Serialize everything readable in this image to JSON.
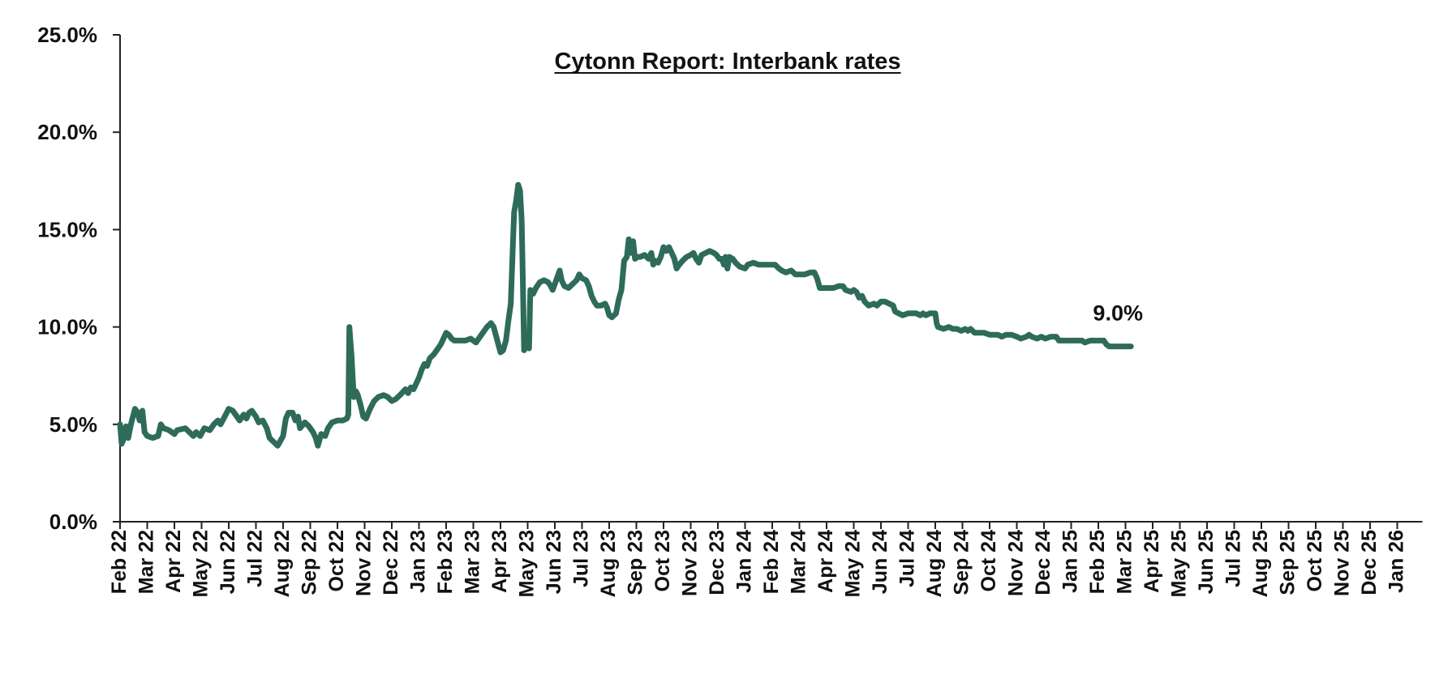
{
  "chart_data": {
    "type": "line",
    "title": "Cytonn Report: Interbank rates",
    "xlabel": "",
    "ylabel": "",
    "ylim": [
      0,
      25
    ],
    "y_ticks": [
      "0.0%",
      "5.0%",
      "10.0%",
      "15.0%",
      "20.0%",
      "25.0%"
    ],
    "y_tick_values": [
      0,
      5,
      10,
      15,
      20,
      25
    ],
    "grid": false,
    "legend": "none",
    "x_tick_labels": [
      "Feb 22",
      "Mar 22",
      "Apr 22",
      "May 22",
      "Jun 22",
      "Jul 22",
      "Aug 22",
      "Sep 22",
      "Oct 22",
      "Nov 22",
      "Dec 22",
      "Jan 23",
      "Feb 23",
      "Mar 23",
      "Apr 23",
      "May 23",
      "Jun 23",
      "Jul 23",
      "Aug 23",
      "Sep 23",
      "Oct 23",
      "Nov 23",
      "Dec 23",
      "Jan 24",
      "Feb 24",
      "Mar 24",
      "Apr 24",
      "May 24",
      "Jun 24",
      "Jul 24",
      "Aug 24",
      "Sep 24",
      "Oct 24",
      "Nov 24",
      "Dec 24",
      "Jan 25",
      "Feb 25",
      "Mar 25",
      "Apr 25",
      "May 25",
      "Jun 25",
      "Jul 25",
      "Aug 25",
      "Sep 25",
      "Oct 25",
      "Nov 25",
      "Dec 25",
      "Jan 26"
    ],
    "series": [
      {
        "color": "#2e6b5a",
        "points": [
          [
            0.0,
            5.0
          ],
          [
            0.06,
            4.0
          ],
          [
            0.12,
            4.2
          ],
          [
            0.22,
            4.9
          ],
          [
            0.3,
            4.3
          ],
          [
            0.4,
            5.0
          ],
          [
            0.55,
            5.8
          ],
          [
            0.65,
            5.6
          ],
          [
            0.72,
            5.2
          ],
          [
            0.82,
            5.7
          ],
          [
            0.9,
            4.6
          ],
          [
            1.0,
            4.4
          ],
          [
            1.2,
            4.3
          ],
          [
            1.4,
            4.4
          ],
          [
            1.5,
            5.0
          ],
          [
            1.6,
            4.8
          ],
          [
            1.8,
            4.7
          ],
          [
            2.0,
            4.5
          ],
          [
            2.1,
            4.7
          ],
          [
            2.4,
            4.8
          ],
          [
            2.55,
            4.6
          ],
          [
            2.7,
            4.4
          ],
          [
            2.8,
            4.6
          ],
          [
            2.95,
            4.4
          ],
          [
            3.1,
            4.8
          ],
          [
            3.3,
            4.7
          ],
          [
            3.45,
            5.0
          ],
          [
            3.6,
            5.2
          ],
          [
            3.7,
            5.0
          ],
          [
            3.85,
            5.4
          ],
          [
            4.0,
            5.8
          ],
          [
            4.15,
            5.7
          ],
          [
            4.25,
            5.5
          ],
          [
            4.4,
            5.2
          ],
          [
            4.55,
            5.5
          ],
          [
            4.65,
            5.3
          ],
          [
            4.75,
            5.6
          ],
          [
            4.85,
            5.7
          ],
          [
            5.0,
            5.4
          ],
          [
            5.1,
            5.1
          ],
          [
            5.25,
            5.2
          ],
          [
            5.4,
            4.8
          ],
          [
            5.5,
            4.3
          ],
          [
            5.65,
            4.1
          ],
          [
            5.8,
            3.9
          ],
          [
            6.0,
            4.4
          ],
          [
            6.1,
            5.3
          ],
          [
            6.2,
            5.6
          ],
          [
            6.35,
            5.6
          ],
          [
            6.45,
            5.2
          ],
          [
            6.55,
            5.4
          ],
          [
            6.62,
            4.8
          ],
          [
            6.8,
            5.1
          ],
          [
            6.95,
            4.9
          ],
          [
            7.1,
            4.6
          ],
          [
            7.2,
            4.3
          ],
          [
            7.28,
            3.9
          ],
          [
            7.4,
            4.5
          ],
          [
            7.55,
            4.4
          ],
          [
            7.65,
            4.8
          ],
          [
            7.8,
            5.1
          ],
          [
            8.0,
            5.2
          ],
          [
            8.2,
            5.2
          ],
          [
            8.35,
            5.3
          ],
          [
            8.4,
            5.5
          ],
          [
            8.44,
            10.0
          ],
          [
            8.52,
            8.5
          ],
          [
            8.6,
            6.4
          ],
          [
            8.68,
            6.7
          ],
          [
            8.75,
            6.5
          ],
          [
            8.85,
            6.0
          ],
          [
            8.95,
            5.4
          ],
          [
            9.05,
            5.3
          ],
          [
            9.2,
            5.8
          ],
          [
            9.35,
            6.2
          ],
          [
            9.5,
            6.4
          ],
          [
            9.7,
            6.5
          ],
          [
            9.85,
            6.4
          ],
          [
            10.0,
            6.2
          ],
          [
            10.15,
            6.3
          ],
          [
            10.3,
            6.5
          ],
          [
            10.5,
            6.8
          ],
          [
            10.6,
            6.6
          ],
          [
            10.7,
            6.9
          ],
          [
            10.8,
            6.8
          ],
          [
            10.9,
            7.1
          ],
          [
            11.0,
            7.4
          ],
          [
            11.1,
            7.8
          ],
          [
            11.2,
            8.1
          ],
          [
            11.3,
            8.0
          ],
          [
            11.4,
            8.4
          ],
          [
            11.55,
            8.6
          ],
          [
            11.7,
            8.9
          ],
          [
            11.8,
            9.1
          ],
          [
            11.9,
            9.4
          ],
          [
            12.0,
            9.7
          ],
          [
            12.1,
            9.6
          ],
          [
            12.2,
            9.4
          ],
          [
            12.3,
            9.3
          ],
          [
            12.5,
            9.3
          ],
          [
            12.7,
            9.3
          ],
          [
            12.9,
            9.4
          ],
          [
            13.0,
            9.3
          ],
          [
            13.1,
            9.2
          ],
          [
            13.3,
            9.6
          ],
          [
            13.5,
            10.0
          ],
          [
            13.65,
            10.2
          ],
          [
            13.75,
            10.0
          ],
          [
            13.9,
            9.2
          ],
          [
            14.0,
            8.7
          ],
          [
            14.1,
            8.8
          ],
          [
            14.2,
            9.3
          ],
          [
            14.3,
            10.4
          ],
          [
            14.38,
            11.2
          ],
          [
            14.45,
            14.0
          ],
          [
            14.5,
            15.9
          ],
          [
            14.58,
            16.5
          ],
          [
            14.65,
            17.3
          ],
          [
            14.72,
            17.0
          ],
          [
            14.78,
            15.5
          ],
          [
            14.82,
            12.5
          ],
          [
            14.87,
            8.8
          ],
          [
            14.93,
            9.2
          ],
          [
            15.0,
            9.5
          ],
          [
            15.05,
            8.9
          ],
          [
            15.1,
            11.9
          ],
          [
            15.2,
            11.7
          ],
          [
            15.3,
            12.0
          ],
          [
            15.45,
            12.3
          ],
          [
            15.6,
            12.4
          ],
          [
            15.75,
            12.3
          ],
          [
            15.85,
            12.1
          ],
          [
            15.92,
            11.9
          ],
          [
            16.0,
            12.2
          ],
          [
            16.1,
            12.6
          ],
          [
            16.18,
            12.9
          ],
          [
            16.25,
            12.4
          ],
          [
            16.35,
            12.1
          ],
          [
            16.5,
            12.0
          ],
          [
            16.65,
            12.2
          ],
          [
            16.8,
            12.4
          ],
          [
            16.9,
            12.7
          ],
          [
            17.0,
            12.5
          ],
          [
            17.15,
            12.4
          ],
          [
            17.25,
            12.1
          ],
          [
            17.35,
            11.6
          ],
          [
            17.45,
            11.3
          ],
          [
            17.55,
            11.1
          ],
          [
            17.7,
            11.1
          ],
          [
            17.85,
            11.2
          ],
          [
            17.92,
            11.0
          ],
          [
            18.0,
            10.6
          ],
          [
            18.1,
            10.5
          ],
          [
            18.25,
            10.7
          ],
          [
            18.35,
            11.4
          ],
          [
            18.45,
            11.9
          ],
          [
            18.55,
            13.4
          ],
          [
            18.65,
            13.6
          ],
          [
            18.72,
            14.5
          ],
          [
            18.8,
            13.8
          ],
          [
            18.88,
            14.4
          ],
          [
            18.95,
            13.5
          ],
          [
            19.05,
            13.6
          ],
          [
            19.15,
            13.6
          ],
          [
            19.3,
            13.7
          ],
          [
            19.45,
            13.5
          ],
          [
            19.55,
            13.8
          ],
          [
            19.62,
            13.2
          ],
          [
            19.7,
            13.4
          ],
          [
            19.8,
            13.3
          ],
          [
            19.9,
            13.6
          ],
          [
            20.0,
            14.1
          ],
          [
            20.1,
            13.9
          ],
          [
            20.2,
            14.1
          ],
          [
            20.3,
            13.8
          ],
          [
            20.4,
            13.5
          ],
          [
            20.48,
            13.0
          ],
          [
            20.58,
            13.2
          ],
          [
            20.7,
            13.4
          ],
          [
            20.85,
            13.6
          ],
          [
            21.0,
            13.7
          ],
          [
            21.1,
            13.8
          ],
          [
            21.2,
            13.5
          ],
          [
            21.3,
            13.3
          ],
          [
            21.4,
            13.7
          ],
          [
            21.55,
            13.8
          ],
          [
            21.7,
            13.9
          ],
          [
            21.85,
            13.8
          ],
          [
            21.95,
            13.7
          ],
          [
            22.05,
            13.5
          ],
          [
            22.15,
            13.5
          ],
          [
            22.22,
            13.2
          ],
          [
            22.28,
            13.6
          ],
          [
            22.35,
            13.0
          ],
          [
            22.42,
            13.6
          ],
          [
            22.55,
            13.5
          ],
          [
            22.65,
            13.3
          ],
          [
            22.8,
            13.1
          ],
          [
            23.0,
            13.0
          ],
          [
            23.1,
            13.2
          ],
          [
            23.3,
            13.3
          ],
          [
            23.5,
            13.2
          ],
          [
            23.7,
            13.2
          ],
          [
            23.9,
            13.2
          ],
          [
            24.1,
            13.2
          ],
          [
            24.25,
            13.0
          ],
          [
            24.35,
            12.9
          ],
          [
            24.5,
            12.8
          ],
          [
            24.7,
            12.9
          ],
          [
            24.85,
            12.7
          ],
          [
            25.0,
            12.7
          ],
          [
            25.2,
            12.7
          ],
          [
            25.4,
            12.8
          ],
          [
            25.55,
            12.8
          ],
          [
            25.65,
            12.5
          ],
          [
            25.75,
            12.0
          ],
          [
            26.0,
            12.0
          ],
          [
            26.25,
            12.0
          ],
          [
            26.45,
            12.1
          ],
          [
            26.6,
            12.1
          ],
          [
            26.7,
            11.9
          ],
          [
            26.9,
            11.8
          ],
          [
            27.0,
            11.9
          ],
          [
            27.1,
            11.8
          ],
          [
            27.2,
            11.5
          ],
          [
            27.3,
            11.6
          ],
          [
            27.4,
            11.3
          ],
          [
            27.55,
            11.1
          ],
          [
            27.75,
            11.2
          ],
          [
            27.85,
            11.1
          ],
          [
            28.0,
            11.3
          ],
          [
            28.15,
            11.3
          ],
          [
            28.3,
            11.2
          ],
          [
            28.45,
            11.1
          ],
          [
            28.52,
            10.8
          ],
          [
            28.65,
            10.7
          ],
          [
            28.8,
            10.6
          ],
          [
            29.0,
            10.7
          ],
          [
            29.3,
            10.7
          ],
          [
            29.45,
            10.6
          ],
          [
            29.55,
            10.7
          ],
          [
            29.65,
            10.6
          ],
          [
            29.8,
            10.7
          ],
          [
            30.0,
            10.7
          ],
          [
            30.05,
            10.2
          ],
          [
            30.1,
            10.0
          ],
          [
            30.3,
            9.9
          ],
          [
            30.5,
            10.0
          ],
          [
            30.65,
            9.9
          ],
          [
            30.8,
            9.9
          ],
          [
            30.95,
            9.8
          ],
          [
            31.1,
            9.9
          ],
          [
            31.2,
            9.8
          ],
          [
            31.3,
            9.9
          ],
          [
            31.45,
            9.7
          ],
          [
            31.6,
            9.7
          ],
          [
            31.8,
            9.7
          ],
          [
            32.0,
            9.6
          ],
          [
            32.15,
            9.6
          ],
          [
            32.3,
            9.6
          ],
          [
            32.45,
            9.5
          ],
          [
            32.6,
            9.6
          ],
          [
            32.8,
            9.6
          ],
          [
            33.0,
            9.5
          ],
          [
            33.15,
            9.4
          ],
          [
            33.35,
            9.5
          ],
          [
            33.45,
            9.6
          ],
          [
            33.55,
            9.5
          ],
          [
            33.75,
            9.4
          ],
          [
            33.9,
            9.5
          ],
          [
            34.05,
            9.4
          ],
          [
            34.25,
            9.5
          ],
          [
            34.45,
            9.5
          ],
          [
            34.55,
            9.3
          ],
          [
            34.75,
            9.3
          ],
          [
            35.0,
            9.3
          ],
          [
            35.2,
            9.3
          ],
          [
            35.4,
            9.3
          ],
          [
            35.5,
            9.2
          ],
          [
            35.7,
            9.3
          ],
          [
            35.9,
            9.3
          ],
          [
            36.2,
            9.3
          ],
          [
            36.3,
            9.1
          ],
          [
            36.4,
            9.0
          ],
          [
            36.7,
            9.0
          ],
          [
            37.0,
            9.0
          ],
          [
            37.2,
            9.0
          ]
        ]
      }
    ],
    "last_value_label": "9.0%"
  }
}
